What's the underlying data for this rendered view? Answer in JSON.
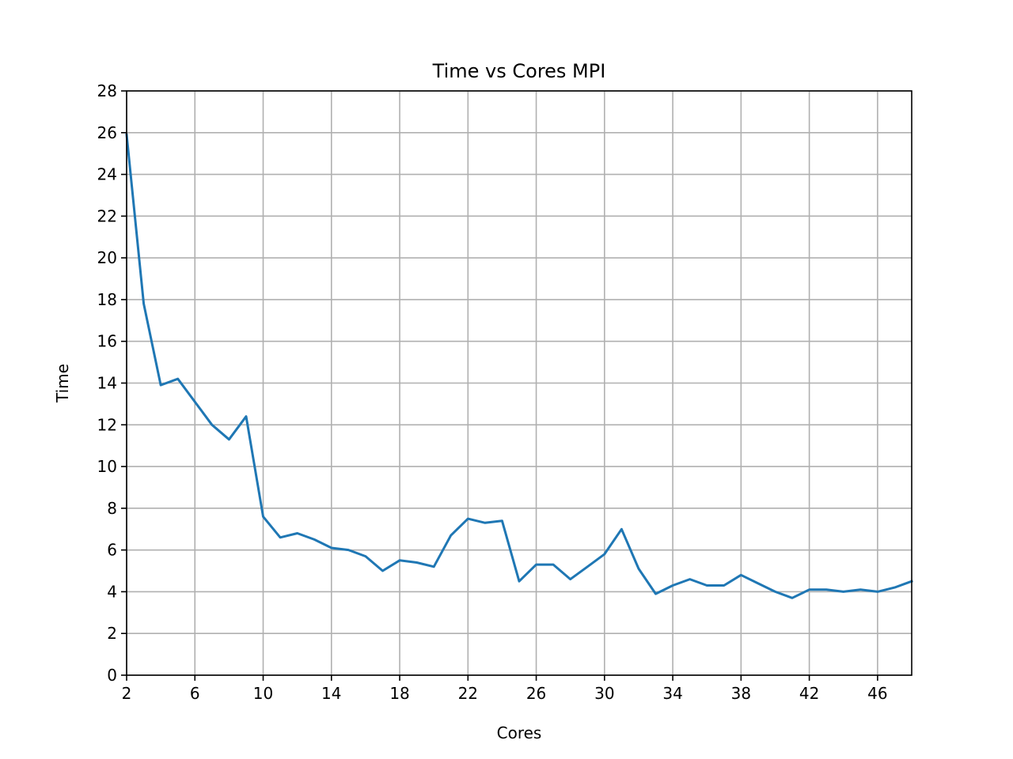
{
  "chart_data": {
    "type": "line",
    "title": "Time vs Cores MPI",
    "xlabel": "Cores",
    "ylabel": "Time",
    "xlim": [
      2,
      48
    ],
    "ylim": [
      0,
      28
    ],
    "xticks": [
      2,
      6,
      10,
      14,
      18,
      22,
      26,
      30,
      34,
      38,
      42,
      46
    ],
    "yticks": [
      0,
      2,
      4,
      6,
      8,
      10,
      12,
      14,
      16,
      18,
      20,
      22,
      24,
      26,
      28
    ],
    "grid": true,
    "series": [
      {
        "color": "#1f77b4",
        "x": [
          2,
          3,
          4,
          5,
          6,
          7,
          8,
          9,
          10,
          11,
          12,
          13,
          14,
          15,
          16,
          17,
          18,
          19,
          20,
          21,
          22,
          23,
          24,
          25,
          26,
          27,
          28,
          29,
          30,
          31,
          32,
          33,
          34,
          35,
          36,
          37,
          38,
          39,
          40,
          41,
          42,
          43,
          44,
          45,
          46,
          47,
          48
        ],
        "y": [
          25.9,
          17.8,
          13.9,
          14.2,
          13.1,
          12.0,
          11.3,
          12.4,
          7.6,
          6.6,
          6.8,
          6.5,
          6.1,
          6.0,
          5.7,
          5.0,
          5.5,
          5.4,
          5.2,
          6.7,
          7.5,
          7.3,
          7.4,
          4.5,
          5.3,
          5.3,
          4.6,
          5.2,
          5.8,
          7.0,
          5.1,
          3.9,
          4.3,
          4.6,
          4.3,
          4.3,
          4.8,
          4.4,
          4.0,
          3.7,
          4.1,
          4.1,
          4.0,
          4.1,
          4.0,
          4.2,
          4.5
        ]
      }
    ]
  }
}
